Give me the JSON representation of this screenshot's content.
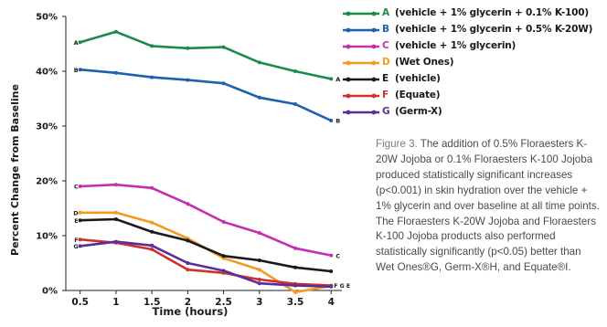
{
  "chart_data": {
    "type": "line",
    "title": "",
    "xlabel": "Time (hours)",
    "ylabel": "Percent Change from Baseline",
    "x": [
      0.5,
      1,
      1.5,
      2,
      2.5,
      3,
      3.5,
      4
    ],
    "x_ticks": [
      "0.5",
      "1",
      "1.5",
      "2",
      "2.5",
      "3",
      "3.5",
      "4"
    ],
    "xlim": [
      0.3,
      4.15
    ],
    "y_ticks": [
      "0%",
      "10%",
      "20%",
      "30%",
      "40%",
      "50%"
    ],
    "y_tick_values": [
      0,
      10,
      20,
      30,
      40,
      50
    ],
    "ylim": [
      0,
      50
    ],
    "grid": false,
    "legend_position": "top-right",
    "series": [
      {
        "key": "A",
        "name": "(vehicle + 1% glycerin + 0.1% K-100)",
        "color": "#1a8a4e",
        "values": [
          45.3,
          47.2,
          44.6,
          44.2,
          44.4,
          41.6,
          40.0,
          38.6
        ]
      },
      {
        "key": "B",
        "name": "(vehicle + 1% glycerin + 0.5% K-20W)",
        "color": "#1e5fae",
        "values": [
          40.3,
          39.7,
          38.9,
          38.4,
          37.8,
          35.2,
          34.0,
          31.0
        ]
      },
      {
        "key": "C",
        "name": "(vehicle + 1% glycerin)",
        "color": "#c42fb0",
        "values": [
          19.0,
          19.3,
          18.7,
          15.8,
          12.5,
          10.5,
          7.7,
          6.4
        ]
      },
      {
        "key": "D",
        "name": "(Wet Ones)",
        "color": "#f39a21",
        "values": [
          14.2,
          14.2,
          12.4,
          9.5,
          5.9,
          3.8,
          -0.3,
          0.8
        ]
      },
      {
        "key": "E",
        "name": "(vehicle)",
        "color": "#1a1a1a",
        "values": [
          12.8,
          13.0,
          10.7,
          9.1,
          6.3,
          5.5,
          4.2,
          3.5
        ]
      },
      {
        "key": "F",
        "name": "(Equate)",
        "color": "#d0312d",
        "values": [
          9.3,
          8.7,
          7.5,
          3.8,
          3.2,
          2.0,
          1.2,
          0.9
        ]
      },
      {
        "key": "G",
        "name": "(Germ-X)",
        "color": "#5b2d9a",
        "values": [
          8.1,
          8.9,
          8.2,
          5.0,
          3.6,
          1.3,
          0.9,
          0.7
        ]
      }
    ],
    "end_labels": "F G E",
    "caption": {
      "figure_label": "Figure 3.",
      "text": " The addition of 0.5% Floraesters K-20W Jojoba or 0.1% Floraesters K-100 Jojoba produced statistically significant increases (p<0.001) in skin hydration over the vehicle + 1% glycerin and over baseline at all time points. The Floraesters K-20W Jojoba and Floraesters K-100 Jojoba products also performed statistically significantly (p<0.05) better than Wet Ones®G, Germ-X®H, and Equate®I."
    }
  }
}
